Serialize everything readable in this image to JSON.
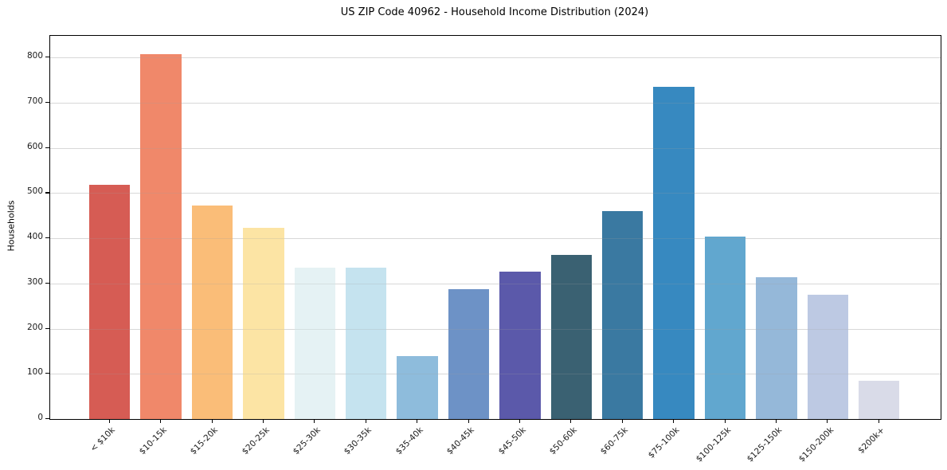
{
  "chart_data": {
    "type": "bar",
    "title": "US ZIP Code 40962 - Household Income Distribution (2024)",
    "xlabel": "",
    "ylabel": "Households",
    "categories": [
      "< $10k",
      "$10-15k",
      "$15-20k",
      "$20-25k",
      "$25-30k",
      "$30-35k",
      "$35-40k",
      "$40-45k",
      "$45-50k",
      "$50-60k",
      "$60-75k",
      "$75-100k",
      "$100-125k",
      "$125-150k",
      "$150-200k",
      "$200k+"
    ],
    "values": [
      519,
      808,
      472,
      423,
      335,
      335,
      139,
      287,
      326,
      364,
      461,
      736,
      403,
      313,
      275,
      84
    ],
    "bar_colors": [
      "#d65c54",
      "#f0886a",
      "#fabd78",
      "#fce4a4",
      "#e5f2f4",
      "#c5e3ef",
      "#8ebcdc",
      "#6d92c6",
      "#5b59aa",
      "#3a6172",
      "#3a79a1",
      "#3789c0",
      "#61a7cf",
      "#95b8d9",
      "#bdc9e3",
      "#d9dbe8"
    ],
    "ylim": [
      0,
      848
    ],
    "yticks": [
      0,
      100,
      200,
      300,
      400,
      500,
      600,
      700,
      800
    ],
    "grid": "horizontal",
    "grid_color": "#e8e8e8",
    "legend": "none",
    "background": "#ffffff"
  }
}
